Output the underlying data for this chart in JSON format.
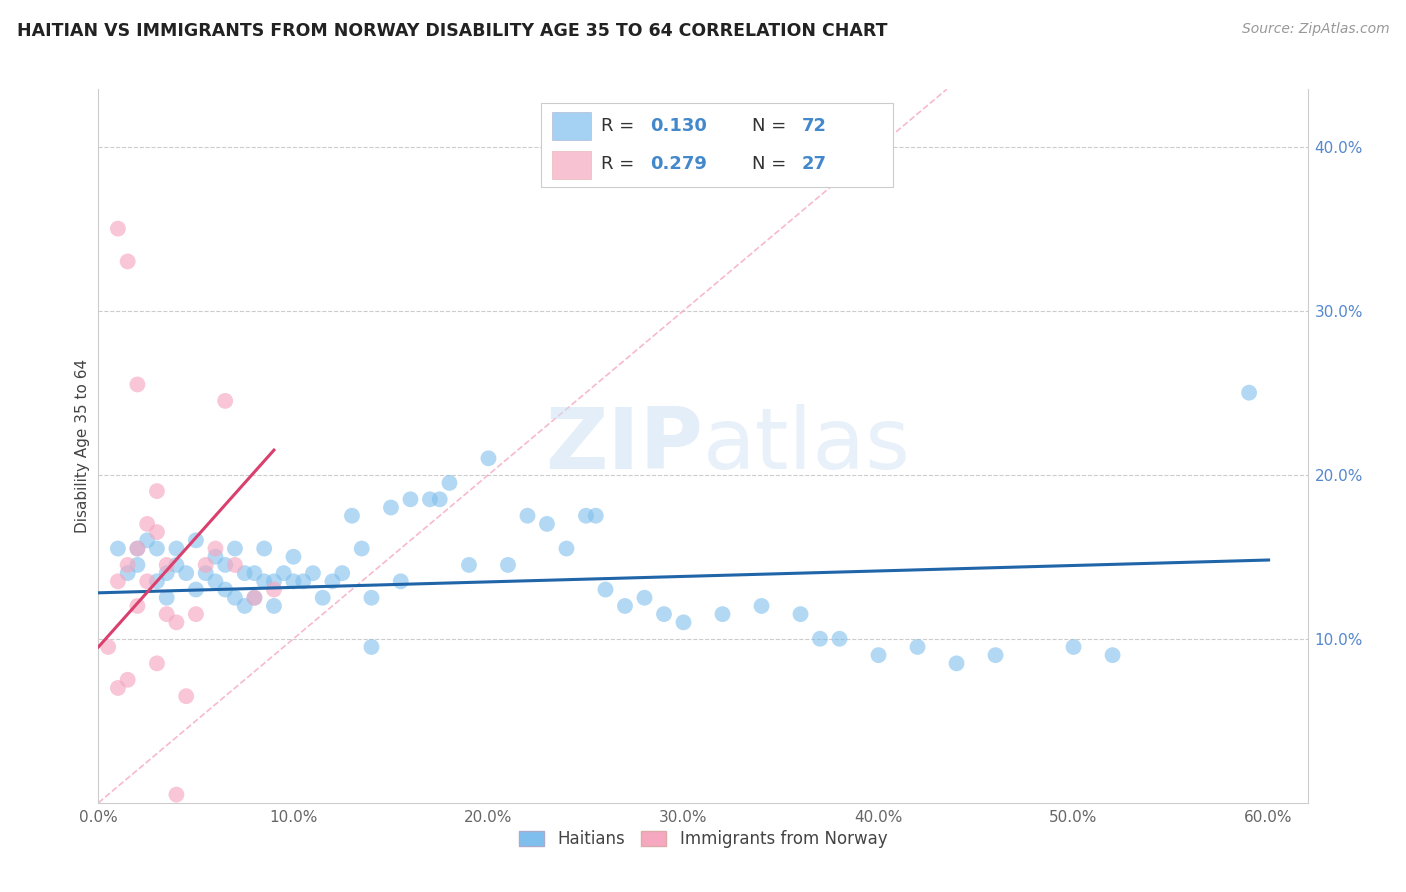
{
  "title": "HAITIAN VS IMMIGRANTS FROM NORWAY DISABILITY AGE 35 TO 64 CORRELATION CHART",
  "source_text": "Source: ZipAtlas.com",
  "ylabel": "Disability Age 35 to 64",
  "xlim": [
    0.0,
    0.62
  ],
  "ylim": [
    0.0,
    0.435
  ],
  "xticks": [
    0.0,
    0.1,
    0.2,
    0.3,
    0.4,
    0.5,
    0.6
  ],
  "xticklabels": [
    "0.0%",
    "10.0%",
    "20.0%",
    "30.0%",
    "40.0%",
    "50.0%",
    "60.0%"
  ],
  "yticks": [
    0.1,
    0.2,
    0.3,
    0.4
  ],
  "yticklabels": [
    "10.0%",
    "20.0%",
    "30.0%",
    "40.0%"
  ],
  "blue_color": "#7fbfed",
  "pink_color": "#f5a8c0",
  "blue_line_color": "#2065a8",
  "pink_line_color": "#d9406e",
  "diagonal_color": "#f5a8c0",
  "watermark_color": "#ddeeff",
  "legend_r_blue": "0.130",
  "legend_n_blue": "72",
  "legend_r_pink": "0.279",
  "legend_n_pink": "27",
  "blue_scatter_x": [
    0.01,
    0.015,
    0.02,
    0.02,
    0.025,
    0.03,
    0.03,
    0.035,
    0.035,
    0.04,
    0.04,
    0.045,
    0.05,
    0.05,
    0.055,
    0.06,
    0.06,
    0.065,
    0.065,
    0.07,
    0.07,
    0.075,
    0.075,
    0.08,
    0.08,
    0.085,
    0.085,
    0.09,
    0.09,
    0.095,
    0.1,
    0.1,
    0.105,
    0.11,
    0.115,
    0.12,
    0.125,
    0.13,
    0.135,
    0.14,
    0.14,
    0.15,
    0.155,
    0.16,
    0.17,
    0.175,
    0.18,
    0.19,
    0.2,
    0.21,
    0.22,
    0.23,
    0.24,
    0.25,
    0.255,
    0.26,
    0.27,
    0.28,
    0.29,
    0.3,
    0.32,
    0.34,
    0.36,
    0.37,
    0.38,
    0.4,
    0.42,
    0.44,
    0.46,
    0.5,
    0.52,
    0.59
  ],
  "blue_scatter_y": [
    0.155,
    0.14,
    0.155,
    0.145,
    0.16,
    0.135,
    0.155,
    0.14,
    0.125,
    0.155,
    0.145,
    0.14,
    0.16,
    0.13,
    0.14,
    0.15,
    0.135,
    0.145,
    0.13,
    0.155,
    0.125,
    0.14,
    0.12,
    0.14,
    0.125,
    0.135,
    0.155,
    0.135,
    0.12,
    0.14,
    0.135,
    0.15,
    0.135,
    0.14,
    0.125,
    0.135,
    0.14,
    0.175,
    0.155,
    0.095,
    0.125,
    0.18,
    0.135,
    0.185,
    0.185,
    0.185,
    0.195,
    0.145,
    0.21,
    0.145,
    0.175,
    0.17,
    0.155,
    0.175,
    0.175,
    0.13,
    0.12,
    0.125,
    0.115,
    0.11,
    0.115,
    0.12,
    0.115,
    0.1,
    0.1,
    0.09,
    0.095,
    0.085,
    0.09,
    0.095,
    0.09,
    0.25
  ],
  "pink_scatter_x": [
    0.005,
    0.01,
    0.01,
    0.015,
    0.015,
    0.02,
    0.02,
    0.025,
    0.025,
    0.03,
    0.03,
    0.035,
    0.035,
    0.04,
    0.045,
    0.05,
    0.055,
    0.06,
    0.065,
    0.07,
    0.08,
    0.09,
    0.01,
    0.015,
    0.02,
    0.03,
    0.04
  ],
  "pink_scatter_y": [
    0.095,
    0.135,
    0.07,
    0.145,
    0.075,
    0.155,
    0.12,
    0.17,
    0.135,
    0.19,
    0.165,
    0.145,
    0.115,
    0.11,
    0.065,
    0.115,
    0.145,
    0.155,
    0.245,
    0.145,
    0.125,
    0.13,
    0.35,
    0.33,
    0.255,
    0.085,
    0.005
  ],
  "blue_trend_x": [
    0.0,
    0.6
  ],
  "blue_trend_y": [
    0.128,
    0.148
  ],
  "pink_trend_x": [
    0.0,
    0.09
  ],
  "pink_trend_y": [
    0.095,
    0.215
  ],
  "figsize": [
    14.06,
    8.92
  ],
  "dpi": 100
}
